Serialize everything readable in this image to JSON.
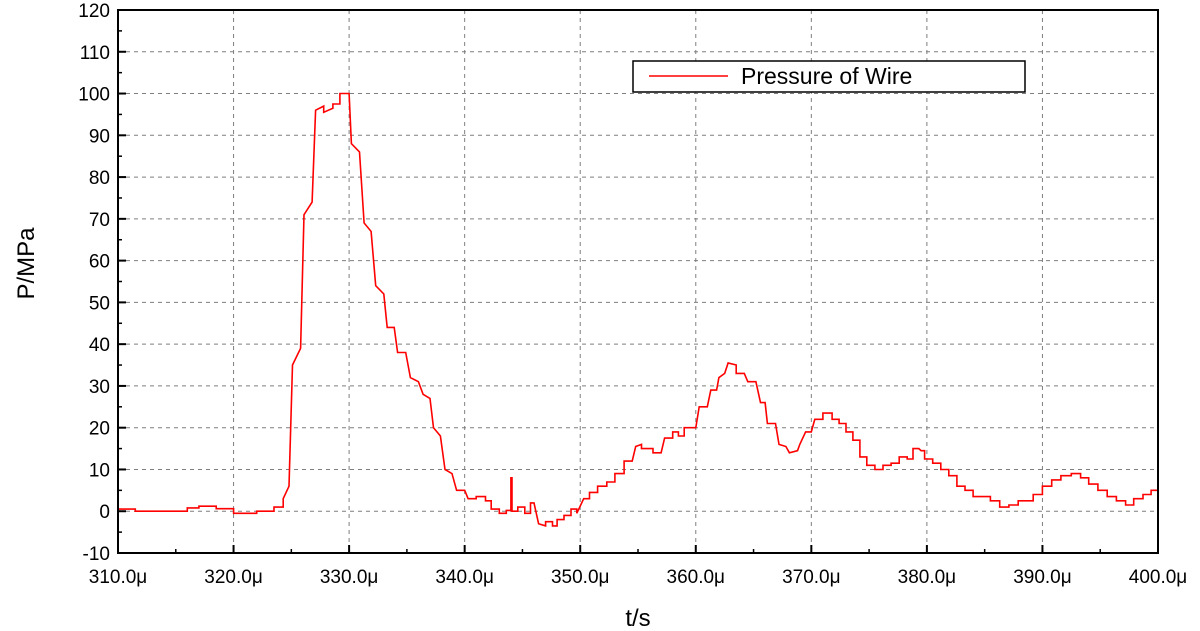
{
  "chart_data": {
    "type": "line",
    "title": "",
    "xlabel": "t/s",
    "ylabel": "P/MPa",
    "xlim": [
      310,
      400
    ],
    "ylim": [
      -10,
      120
    ],
    "x_unit_note": "μs",
    "xticks": [
      310,
      320,
      330,
      340,
      350,
      360,
      370,
      380,
      390,
      400
    ],
    "xtick_labels": [
      "310.0μ",
      "320.0μ",
      "330.0μ",
      "340.0μ",
      "350.0μ",
      "360.0μ",
      "370.0μ",
      "380.0μ",
      "390.0μ",
      "400.0μ"
    ],
    "yticks": [
      -10,
      0,
      10,
      20,
      30,
      40,
      50,
      60,
      70,
      80,
      90,
      100,
      110,
      120
    ],
    "ytick_labels": [
      "-10",
      "0",
      "10",
      "20",
      "30",
      "40",
      "50",
      "60",
      "70",
      "80",
      "90",
      "100",
      "110",
      "120"
    ],
    "grid": true,
    "legend_position": "top-right",
    "series": [
      {
        "name": "Pressure of Wire",
        "color": "#ff0000",
        "points": [
          [
            310,
            0.5
          ],
          [
            311.5,
            0.5
          ],
          [
            311.5,
            0
          ],
          [
            316,
            0
          ],
          [
            316,
            0.8
          ],
          [
            317,
            0.8
          ],
          [
            317,
            1.2
          ],
          [
            318.5,
            1.2
          ],
          [
            318.5,
            0.6
          ],
          [
            320,
            0.6
          ],
          [
            320,
            -0.5
          ],
          [
            322,
            -0.5
          ],
          [
            322,
            0
          ],
          [
            323.5,
            0
          ],
          [
            323.5,
            1
          ],
          [
            324.3,
            1
          ],
          [
            324.3,
            3
          ],
          [
            324.8,
            6
          ],
          [
            325.1,
            35
          ],
          [
            325.8,
            39
          ],
          [
            326.1,
            71
          ],
          [
            326.8,
            74
          ],
          [
            327.1,
            96
          ],
          [
            327.8,
            97
          ],
          [
            327.8,
            95.5
          ],
          [
            328.6,
            96.5
          ],
          [
            328.6,
            97.5
          ],
          [
            329.2,
            97.5
          ],
          [
            329.2,
            100
          ],
          [
            330,
            100
          ],
          [
            330.2,
            88
          ],
          [
            330.9,
            86
          ],
          [
            331.3,
            69
          ],
          [
            331.9,
            67
          ],
          [
            332.3,
            54
          ],
          [
            333,
            52
          ],
          [
            333.3,
            44
          ],
          [
            333.9,
            44
          ],
          [
            334.2,
            38
          ],
          [
            334.9,
            38
          ],
          [
            335.3,
            32
          ],
          [
            336,
            31
          ],
          [
            336.4,
            28
          ],
          [
            337,
            27
          ],
          [
            337.3,
            20
          ],
          [
            337.9,
            18
          ],
          [
            338.3,
            10
          ],
          [
            338.9,
            9
          ],
          [
            339.3,
            5
          ],
          [
            340,
            5
          ],
          [
            340.3,
            3
          ],
          [
            341,
            3
          ],
          [
            341,
            3.5
          ],
          [
            341.8,
            3.5
          ],
          [
            341.8,
            2.5
          ],
          [
            342.3,
            2.5
          ],
          [
            342.3,
            0.5
          ],
          [
            343,
            0.5
          ],
          [
            343,
            -0.5
          ],
          [
            343.6,
            -0.5
          ],
          [
            343.6,
            0.2
          ],
          [
            344,
            0.2
          ],
          [
            344,
            8
          ],
          [
            344.1,
            8
          ],
          [
            344.1,
            0
          ],
          [
            344.6,
            0
          ],
          [
            344.6,
            1
          ],
          [
            345.2,
            1
          ],
          [
            345.2,
            -0.5
          ],
          [
            345.7,
            -0.5
          ],
          [
            345.7,
            2
          ],
          [
            346,
            2
          ],
          [
            346.4,
            -3
          ],
          [
            347,
            -3.5
          ],
          [
            347,
            -2.5
          ],
          [
            347.6,
            -2.5
          ],
          [
            347.6,
            -3.5
          ],
          [
            348,
            -3.5
          ],
          [
            348,
            -2
          ],
          [
            348.6,
            -2
          ],
          [
            348.6,
            -1
          ],
          [
            349.2,
            -1
          ],
          [
            349.2,
            0.5
          ],
          [
            349.7,
            0.5
          ],
          [
            349.7,
            -0.5
          ],
          [
            350.3,
            3
          ],
          [
            350.8,
            3
          ],
          [
            350.8,
            4.5
          ],
          [
            351.5,
            4.5
          ],
          [
            351.5,
            6
          ],
          [
            352.3,
            6
          ],
          [
            352.3,
            7
          ],
          [
            353,
            7
          ],
          [
            353,
            9
          ],
          [
            353.8,
            9
          ],
          [
            353.8,
            12
          ],
          [
            354.5,
            12
          ],
          [
            354.8,
            15.5
          ],
          [
            355.3,
            16
          ],
          [
            355.3,
            15
          ],
          [
            356.3,
            15
          ],
          [
            356.3,
            14
          ],
          [
            357,
            14
          ],
          [
            357.3,
            17.5
          ],
          [
            358,
            17.5
          ],
          [
            358,
            19
          ],
          [
            358.5,
            19
          ],
          [
            358.5,
            18
          ],
          [
            359,
            18
          ],
          [
            359,
            20
          ],
          [
            360,
            20
          ],
          [
            360.3,
            25
          ],
          [
            361,
            25
          ],
          [
            361.3,
            29
          ],
          [
            361.8,
            29
          ],
          [
            362,
            32
          ],
          [
            362.5,
            33
          ],
          [
            362.8,
            35.5
          ],
          [
            363.5,
            35
          ],
          [
            363.5,
            33
          ],
          [
            364.2,
            33
          ],
          [
            364.5,
            31
          ],
          [
            365.2,
            31
          ],
          [
            365.6,
            26
          ],
          [
            366,
            26
          ],
          [
            366.2,
            21
          ],
          [
            366.9,
            21
          ],
          [
            367.2,
            16
          ],
          [
            367.8,
            15.5
          ],
          [
            368.1,
            14
          ],
          [
            368.8,
            14.5
          ],
          [
            369,
            16
          ],
          [
            369.5,
            19
          ],
          [
            370,
            19
          ],
          [
            370.3,
            22
          ],
          [
            371,
            22
          ],
          [
            371,
            23.5
          ],
          [
            371.8,
            23.5
          ],
          [
            371.8,
            22
          ],
          [
            372.4,
            22
          ],
          [
            372.4,
            21
          ],
          [
            373,
            21
          ],
          [
            373,
            19
          ],
          [
            373.6,
            19
          ],
          [
            373.6,
            17
          ],
          [
            374.2,
            17
          ],
          [
            374.2,
            13
          ],
          [
            374.8,
            13
          ],
          [
            374.8,
            11
          ],
          [
            375.5,
            11
          ],
          [
            375.5,
            10
          ],
          [
            376.2,
            10
          ],
          [
            376.2,
            11
          ],
          [
            376.9,
            11
          ],
          [
            376.9,
            11.5
          ],
          [
            377.6,
            11.5
          ],
          [
            377.6,
            13
          ],
          [
            378.3,
            13
          ],
          [
            378.3,
            12.5
          ],
          [
            378.8,
            12.5
          ],
          [
            378.8,
            15
          ],
          [
            379.3,
            15
          ],
          [
            379.5,
            14.5
          ],
          [
            379.8,
            14.5
          ],
          [
            379.8,
            12.5
          ],
          [
            380.5,
            12.5
          ],
          [
            380.5,
            11.5
          ],
          [
            381.2,
            11.5
          ],
          [
            381.2,
            10
          ],
          [
            381.9,
            10
          ],
          [
            381.9,
            8.5
          ],
          [
            382.6,
            8.5
          ],
          [
            382.6,
            6
          ],
          [
            383.3,
            6
          ],
          [
            383.3,
            5
          ],
          [
            384,
            5
          ],
          [
            384,
            3.5
          ],
          [
            385.5,
            3.5
          ],
          [
            385.5,
            2.5
          ],
          [
            386.3,
            2.5
          ],
          [
            386.3,
            1
          ],
          [
            387.1,
            1
          ],
          [
            387.1,
            1.5
          ],
          [
            387.9,
            1.5
          ],
          [
            387.9,
            2.5
          ],
          [
            389.2,
            2.5
          ],
          [
            389.2,
            4
          ],
          [
            390,
            4
          ],
          [
            390,
            6
          ],
          [
            390.8,
            6
          ],
          [
            390.8,
            7.5
          ],
          [
            391.6,
            7.5
          ],
          [
            391.6,
            8.5
          ],
          [
            392.5,
            8.5
          ],
          [
            392.5,
            9
          ],
          [
            393.3,
            9
          ],
          [
            393.3,
            8
          ],
          [
            394,
            8
          ],
          [
            394,
            6.5
          ],
          [
            394.8,
            6.5
          ],
          [
            394.8,
            5
          ],
          [
            395.6,
            5
          ],
          [
            395.6,
            3.5
          ],
          [
            396.4,
            3.5
          ],
          [
            396.4,
            2.5
          ],
          [
            397.2,
            2.5
          ],
          [
            397.2,
            1.5
          ],
          [
            397.9,
            1.5
          ],
          [
            397.9,
            3
          ],
          [
            398.7,
            3
          ],
          [
            398.7,
            4
          ],
          [
            399.4,
            4
          ],
          [
            399.4,
            5
          ],
          [
            400,
            5
          ]
        ]
      }
    ]
  }
}
